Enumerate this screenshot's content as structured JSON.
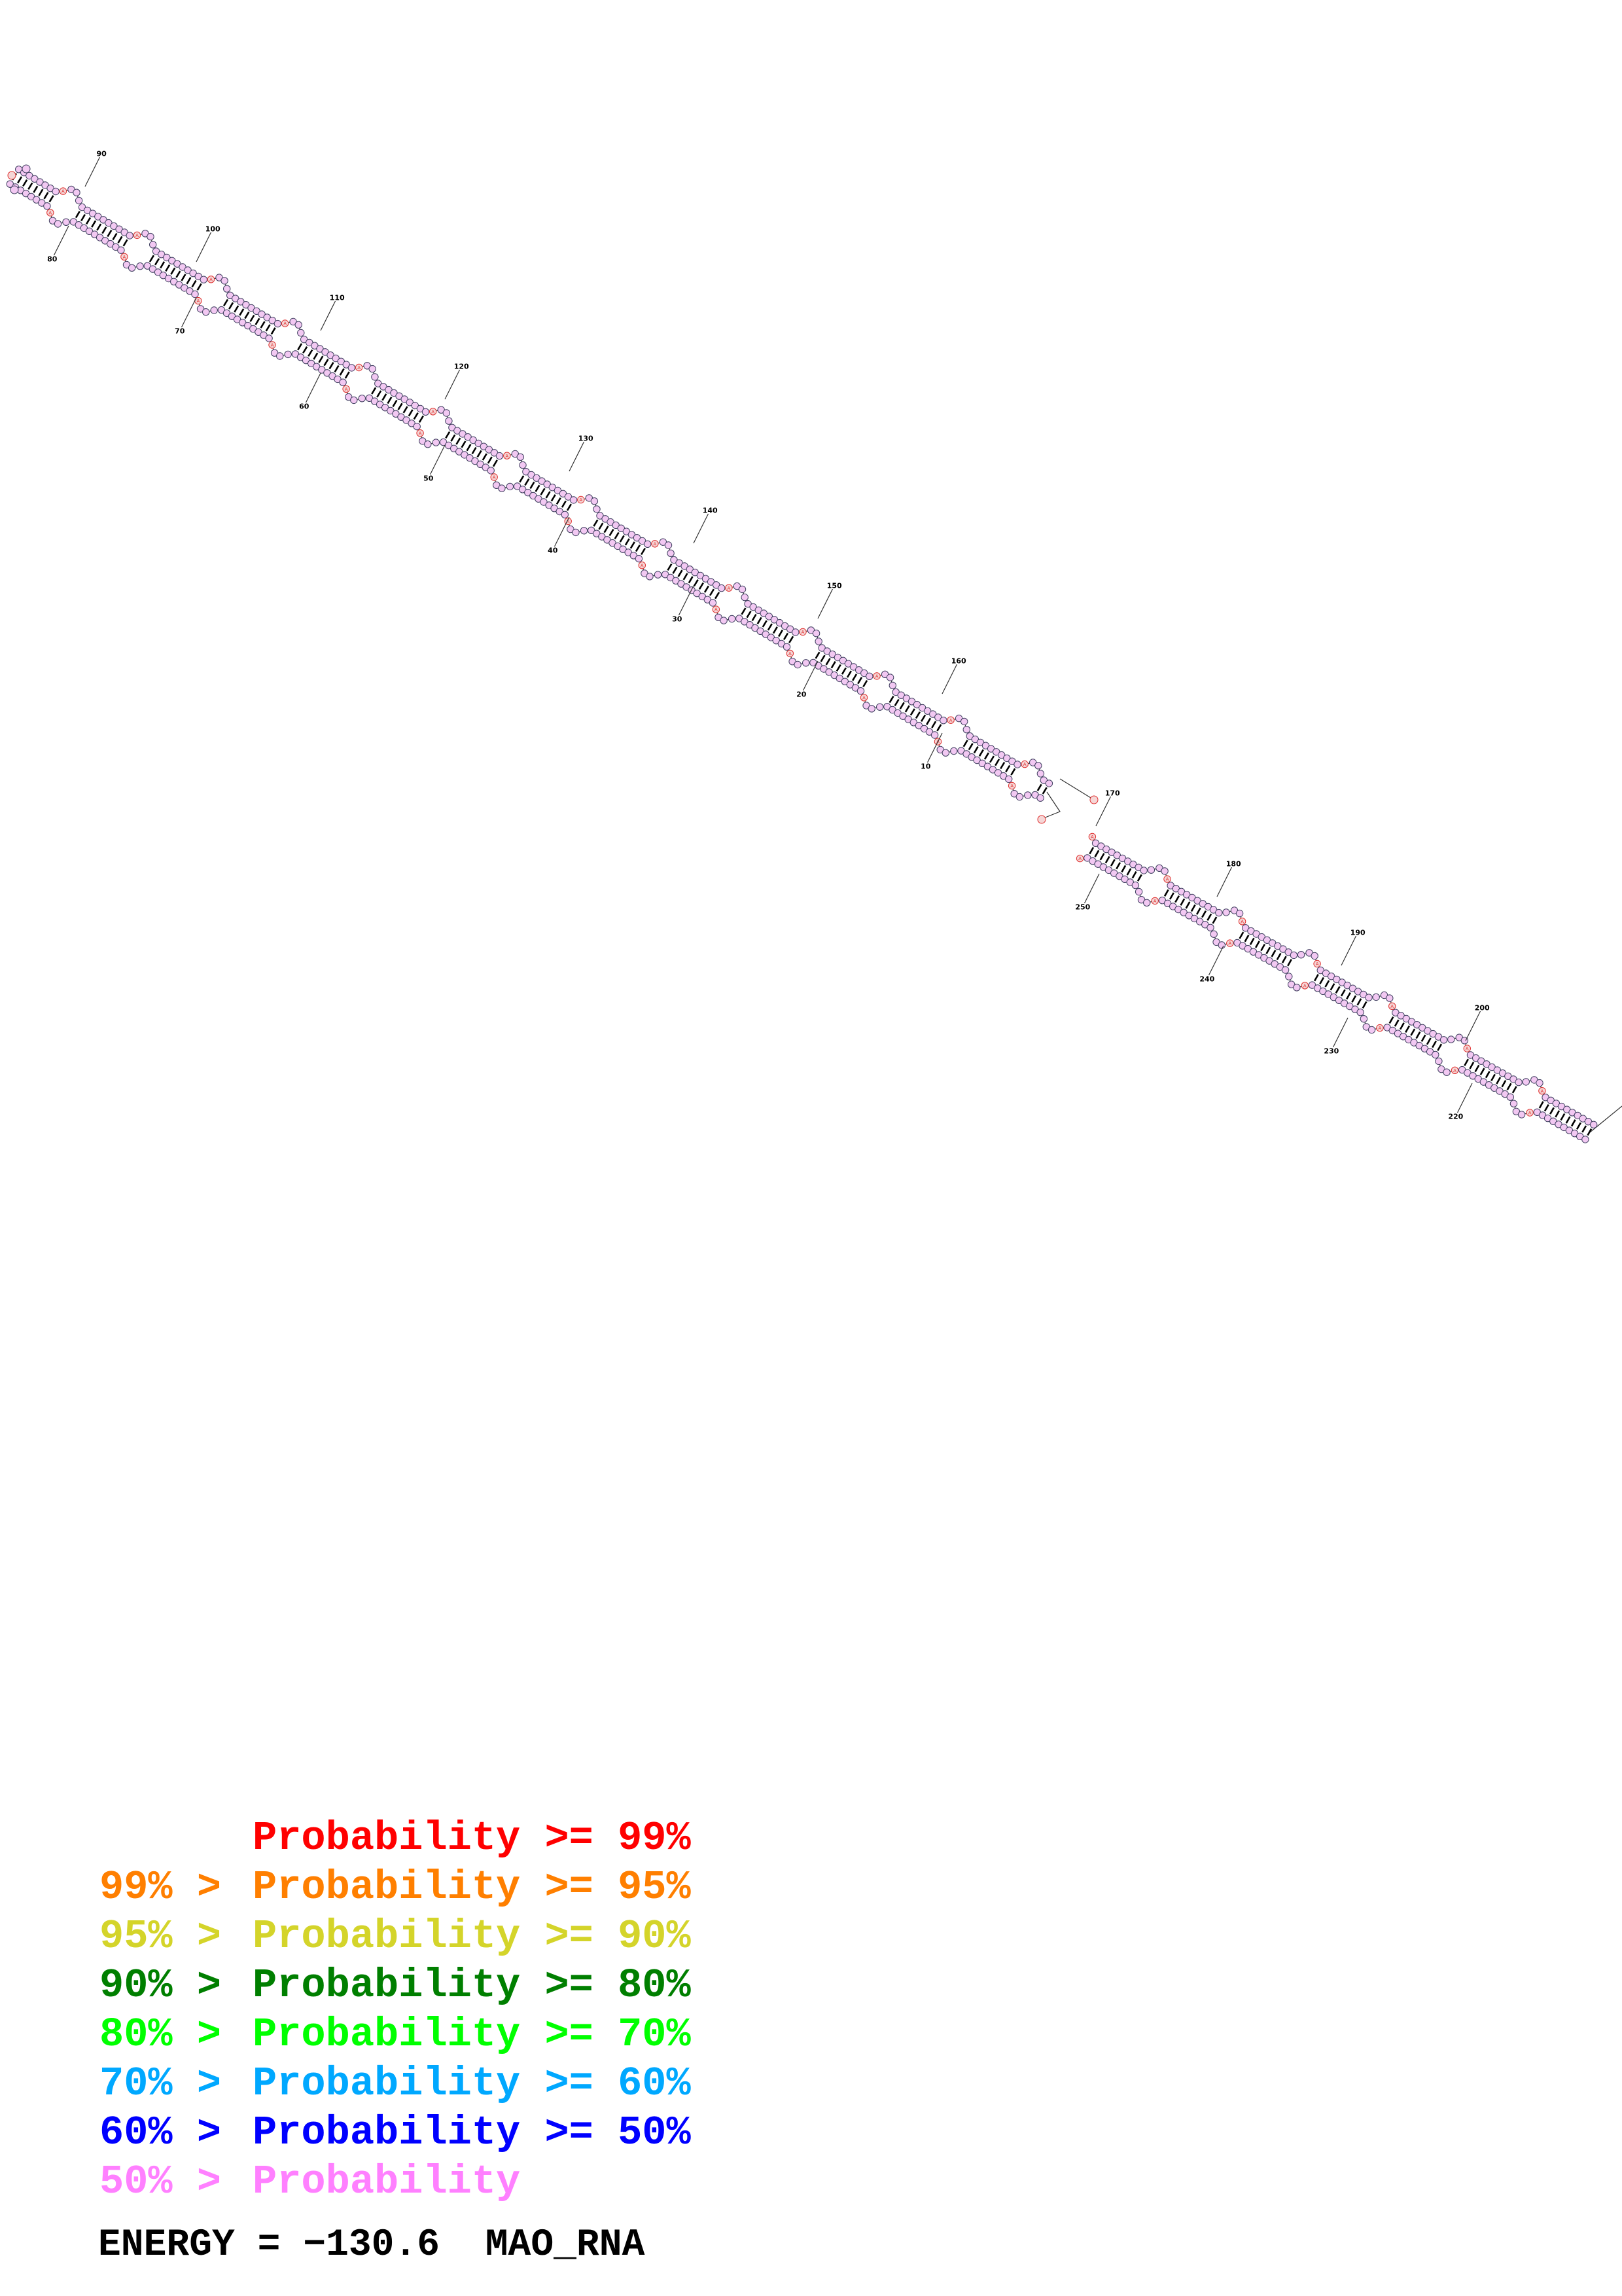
{
  "diagram": {
    "type": "rna-secondary-structure",
    "colors": {
      "unpaired_base_fill": "#f5d6d6",
      "unpaired_base_stroke": "#e03030",
      "paired_base_fill": "#f2c8f2",
      "paired_base_stroke": "#404060",
      "bond": "#000000",
      "backbone": "#303030"
    },
    "helix_1_labels": [
      "10",
      "20",
      "30",
      "40",
      "50",
      "60",
      "70",
      "80",
      "90",
      "100",
      "110",
      "120",
      "130",
      "140",
      "150",
      "160"
    ],
    "helix_2_labels": [
      "170",
      "180",
      "190",
      "200",
      "220",
      "230",
      "240",
      "250"
    ],
    "unpaired_base_label": "A"
  },
  "legend": [
    {
      "range": "",
      "mid": "Probability",
      "op": ">= 99%",
      "color": "#ff0000"
    },
    {
      "range": "99% > ",
      "mid": "Probability",
      "op": ">= 95%",
      "color": "#ff7f00"
    },
    {
      "range": "95% > ",
      "mid": "Probability",
      "op": ">= 90%",
      "color": "#d4d42a"
    },
    {
      "range": "90% > ",
      "mid": "Probability",
      "op": ">= 80%",
      "color": "#007f00"
    },
    {
      "range": "80% > ",
      "mid": "Probability",
      "op": ">= 70%",
      "color": "#00ff00"
    },
    {
      "range": "70% > ",
      "mid": "Probability",
      "op": ">= 60%",
      "color": "#00a8ff"
    },
    {
      "range": "60% > ",
      "mid": "Probability",
      "op": ">= 50%",
      "color": "#0000ff"
    },
    {
      "range": "50% > ",
      "mid": "Probability",
      "op": "",
      "color": "#ff80ff"
    }
  ],
  "energy": {
    "label": "ENERGY = ",
    "value": "−130.6",
    "name": "MAO_RNA"
  }
}
